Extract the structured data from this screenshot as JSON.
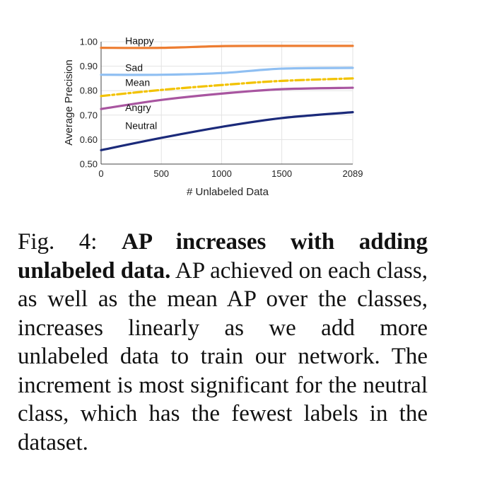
{
  "chart_data": {
    "type": "line",
    "xlabel": "# Unlabeled Data",
    "ylabel": "Average Precision",
    "x": [
      0,
      500,
      1000,
      1500,
      2089
    ],
    "x_ticks": [
      "0",
      "500",
      "1000",
      "1500",
      "2089"
    ],
    "y_ticks": [
      "0.50",
      "0.60",
      "0.70",
      "0.80",
      "0.90",
      "1.00"
    ],
    "ylim": [
      0.5,
      1.0
    ],
    "grid": true,
    "series": [
      {
        "name": "Happy",
        "values": [
          0.975,
          0.975,
          0.982,
          0.983,
          0.983
        ],
        "color": "#ed7d31",
        "dash": "solid"
      },
      {
        "name": "Sad",
        "values": [
          0.865,
          0.865,
          0.872,
          0.89,
          0.893
        ],
        "color": "#8fbff2",
        "dash": "solid"
      },
      {
        "name": "Mean",
        "values": [
          0.778,
          0.803,
          0.823,
          0.84,
          0.85
        ],
        "color": "#f2c200",
        "dash": "dashdot"
      },
      {
        "name": "Angry",
        "values": [
          0.725,
          0.762,
          0.788,
          0.806,
          0.812
        ],
        "color": "#a855a0",
        "dash": "solid"
      },
      {
        "name": "Neutral",
        "values": [
          0.557,
          0.607,
          0.652,
          0.688,
          0.712
        ],
        "color": "#1b2a7a",
        "dash": "solid"
      }
    ]
  },
  "caption": {
    "label": "Fig. 4:",
    "title": "AP increases with adding unlabeled data.",
    "body": "AP achieved on each class, as well as the mean AP over the classes, increases linearly as we add more unlabeled data to train our network. The increment is most significant for the neutral class, which has the fewest labels in the dataset."
  }
}
